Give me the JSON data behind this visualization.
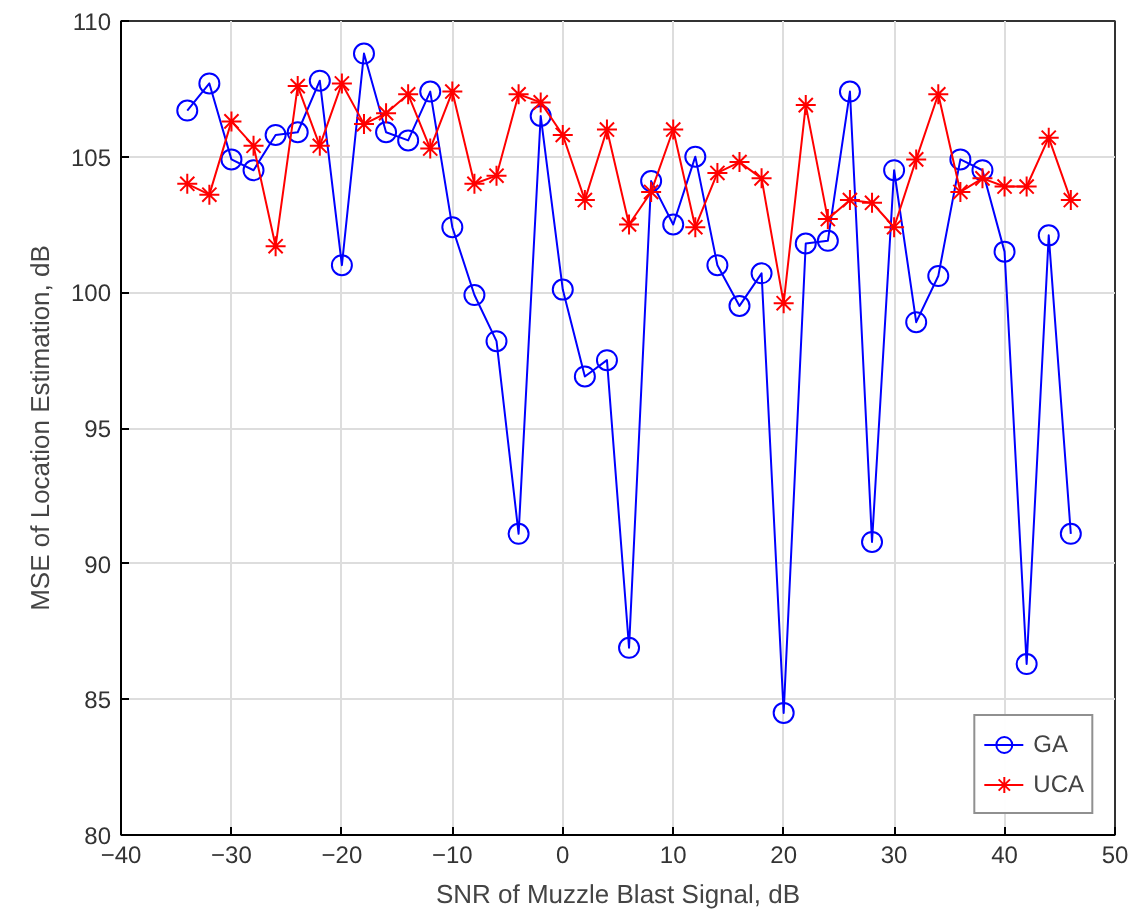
{
  "chart_data": {
    "type": "line",
    "xlabel": "SNR of Muzzle Blast Signal, dB",
    "ylabel": "MSE of Location Estimation, dB",
    "x": [
      -34,
      -32,
      -30,
      -28,
      -26,
      -24,
      -22,
      -20,
      -18,
      -16,
      -14,
      -12,
      -10,
      -8,
      -6,
      -4,
      -2,
      0,
      2,
      4,
      6,
      8,
      10,
      12,
      14,
      16,
      18,
      20,
      22,
      24,
      26,
      28,
      30,
      32,
      34,
      36,
      38,
      40,
      42,
      44,
      46
    ],
    "series": [
      {
        "name": "GA",
        "color": "#0000ff",
        "marker": "circle",
        "values": [
          106.7,
          107.7,
          104.9,
          104.5,
          105.8,
          105.9,
          107.8,
          101.0,
          108.8,
          105.9,
          105.6,
          107.4,
          102.4,
          99.9,
          98.2,
          91.1,
          106.5,
          100.1,
          96.9,
          97.5,
          86.9,
          104.1,
          102.5,
          105.0,
          101.0,
          99.5,
          100.7,
          84.5,
          101.8,
          101.9,
          107.4,
          90.8,
          104.5,
          98.9,
          100.6,
          104.9,
          104.5,
          101.5,
          86.3,
          102.1,
          91.1
        ]
      },
      {
        "name": "UCA",
        "color": "#ff0000",
        "marker": "cross",
        "values": [
          104.0,
          103.6,
          106.3,
          105.4,
          101.7,
          107.6,
          105.4,
          107.7,
          106.2,
          106.6,
          107.3,
          105.3,
          107.4,
          104.0,
          104.3,
          107.3,
          107.0,
          105.8,
          103.4,
          106.0,
          102.5,
          103.7,
          106.0,
          102.4,
          104.4,
          104.8,
          104.2,
          99.6,
          106.9,
          102.7,
          103.4,
          103.3,
          102.4,
          104.9,
          107.3,
          103.7,
          104.2,
          103.9,
          103.9,
          105.7,
          103.4
        ]
      }
    ],
    "xlim": [
      -40,
      50
    ],
    "xticks": [
      -40,
      -30,
      -20,
      -10,
      0,
      10,
      20,
      30,
      40,
      50
    ],
    "ylim": [
      80,
      110
    ],
    "yticks": [
      80,
      85,
      90,
      95,
      100,
      105,
      110
    ],
    "grid": true,
    "legend": "bottom right",
    "line_style": "solid"
  }
}
